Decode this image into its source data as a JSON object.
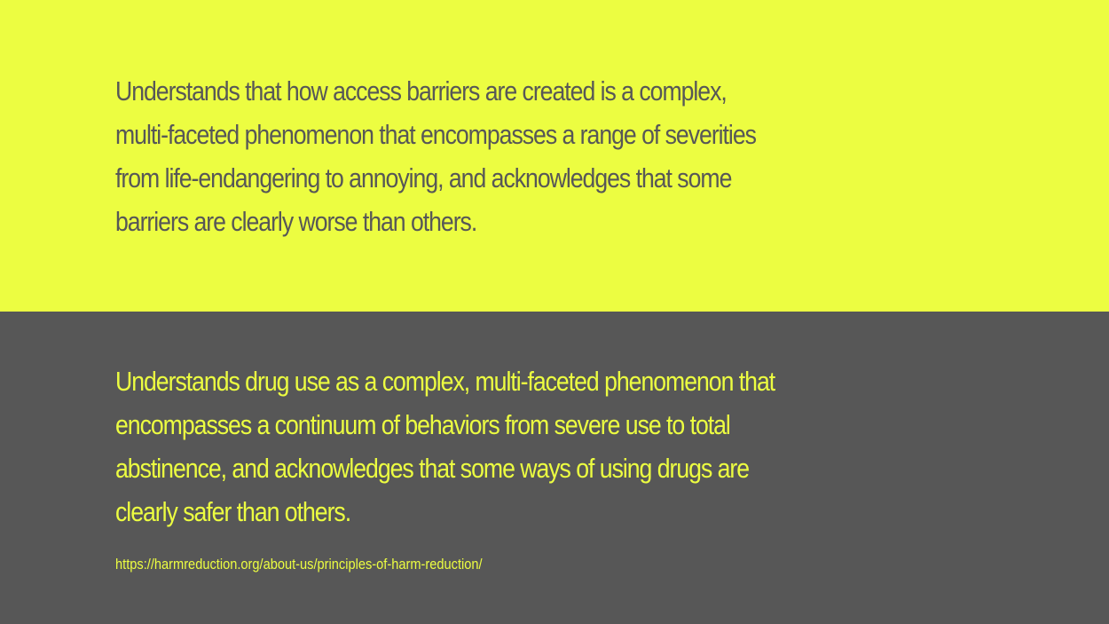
{
  "colors": {
    "accent_yellow": "#ecfd41",
    "dark_gray": "#575757"
  },
  "top_panel": {
    "lines": [
      "Understands that how access barriers are created is a complex,",
      "multi-faceted phenomenon that encompasses a range of severities",
      "from life-endangering to annoying, and acknowledges that some",
      "barriers are clearly worse than others."
    ]
  },
  "bottom_panel": {
    "lines": [
      "Understands drug use as a complex, multi-faceted phenomenon that",
      "encompasses a continuum of behaviors from severe use to total",
      "abstinence, and acknowledges that some ways of using drugs are",
      "clearly safer than others."
    ],
    "source_url": "https://harmreduction.org/about-us/principles-of-harm-reduction/"
  }
}
